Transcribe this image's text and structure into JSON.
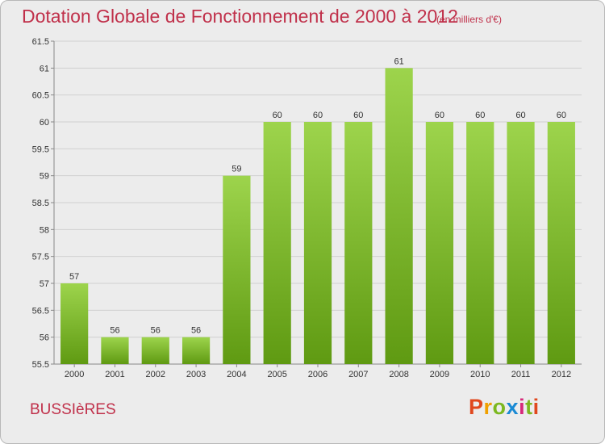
{
  "header": {
    "title": "Dotation Globale de Fonctionnement de 2000 à 2012",
    "unit": "(en milliers d'€)"
  },
  "footer": {
    "town": "BUSSIèRES",
    "logo": "Proxiti",
    "logo_colors": [
      "#e0481e",
      "#f0a000",
      "#7cb820",
      "#1a8ad4",
      "#d6287a",
      "#7cb820",
      "#e0481e"
    ]
  },
  "chart_data": {
    "type": "bar",
    "categories": [
      "2000",
      "2001",
      "2002",
      "2003",
      "2004",
      "2005",
      "2006",
      "2007",
      "2008",
      "2009",
      "2010",
      "2011",
      "2012"
    ],
    "values": [
      57,
      56,
      56,
      56,
      59,
      60,
      60,
      60,
      61,
      60,
      60,
      60,
      60
    ],
    "data_labels": [
      "57",
      "56",
      "56",
      "56",
      "59",
      "60",
      "60",
      "60",
      "61",
      "60",
      "60",
      "60",
      "60"
    ],
    "title": "Dotation Globale de Fonctionnement de 2000 à 2012",
    "ylim": [
      55.5,
      61.5
    ],
    "yticks": [
      55.5,
      56,
      56.5,
      57,
      57.5,
      58,
      58.5,
      59,
      59.5,
      60,
      60.5,
      61,
      61.5
    ],
    "grid": true,
    "bar_color": "#7cbf2a"
  }
}
